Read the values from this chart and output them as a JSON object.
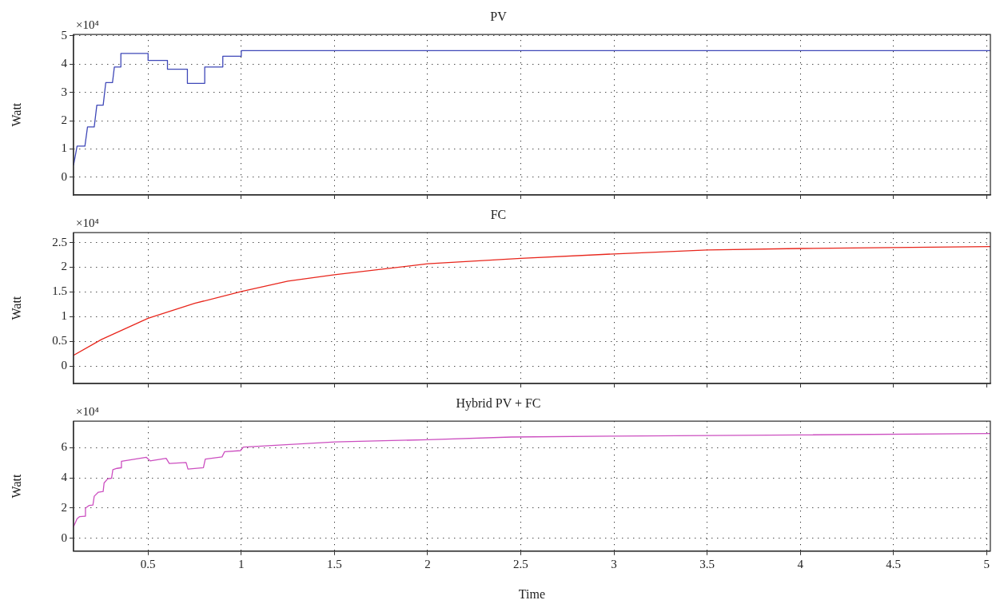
{
  "chart_data": [
    {
      "type": "line",
      "title": "PV",
      "ylabel": "Watt",
      "annotations": [
        "×10⁴"
      ],
      "xlim": [
        0.1,
        5.02
      ],
      "xticks": [
        0.5,
        1,
        1.5,
        2,
        2.5,
        3,
        3.5,
        4,
        4.5,
        5
      ],
      "ylim": [
        -0.63,
        5.05
      ],
      "yticks": [
        0,
        1,
        2,
        3,
        4,
        5
      ],
      "grid": true,
      "tick_labels": "y",
      "line_style": "solid",
      "series": [
        {
          "color": "#3f48b8",
          "x": [
            0.1,
            0.119,
            0.161,
            0.175,
            0.211,
            0.225,
            0.259,
            0.273,
            0.309,
            0.319,
            0.354,
            0.354,
            0.5,
            0.5,
            0.604,
            0.604,
            0.711,
            0.711,
            0.804,
            0.804,
            0.901,
            0.901,
            1.0,
            1.0,
            5.02
          ],
          "values": [
            0.42,
            1.1,
            1.1,
            1.78,
            1.78,
            2.55,
            2.55,
            3.35,
            3.35,
            3.9,
            3.9,
            4.38,
            4.38,
            4.13,
            4.13,
            3.82,
            3.82,
            3.32,
            3.32,
            3.9,
            3.9,
            4.28,
            4.28,
            4.48,
            4.48
          ]
        }
      ]
    },
    {
      "type": "line",
      "title": "FC",
      "ylabel": "Watt",
      "annotations": [
        "×10⁴"
      ],
      "xlim": [
        0.1,
        5.02
      ],
      "xticks": [
        0.5,
        1,
        1.5,
        2,
        2.5,
        3,
        3.5,
        4,
        4.5,
        5
      ],
      "ylim": [
        -0.35,
        2.7
      ],
      "yticks": [
        0,
        0.5,
        1,
        1.5,
        2,
        2.5
      ],
      "grid": true,
      "tick_labels": "y",
      "line_style": "solid",
      "series": [
        {
          "color": "#e8261c",
          "x": [
            0.1,
            0.25,
            0.5,
            0.75,
            1.0,
            1.25,
            1.5,
            2.0,
            2.5,
            3.0,
            3.5,
            4.0,
            5.02
          ],
          "values": [
            0.22,
            0.54,
            0.97,
            1.27,
            1.51,
            1.72,
            1.85,
            2.07,
            2.18,
            2.27,
            2.35,
            2.38,
            2.42
          ]
        }
      ]
    },
    {
      "type": "line",
      "title": "Hybrid PV + FC",
      "xlabel": "Time",
      "ylabel": "Watt",
      "annotations": [
        "×10⁴"
      ],
      "xlim": [
        0.1,
        5.02
      ],
      "xticks": [
        0.5,
        1,
        1.5,
        2,
        2.5,
        3,
        3.5,
        4,
        4.5,
        5
      ],
      "ylim": [
        -0.86,
        7.76
      ],
      "yticks": [
        0,
        2,
        4,
        6
      ],
      "grid": true,
      "line_style": "solid",
      "series": [
        {
          "color": "#cc4fc0",
          "x": [
            0.1,
            0.119,
            0.133,
            0.161,
            0.164,
            0.183,
            0.204,
            0.211,
            0.233,
            0.259,
            0.264,
            0.283,
            0.304,
            0.311,
            0.333,
            0.354,
            0.357,
            0.49,
            0.511,
            0.597,
            0.614,
            0.704,
            0.714,
            0.797,
            0.807,
            0.897,
            0.911,
            0.997,
            1.011,
            1.504,
            2.0,
            2.45,
            3.0,
            4.0,
            5.02
          ],
          "values": [
            0.76,
            1.29,
            1.43,
            1.46,
            1.99,
            2.17,
            2.2,
            2.78,
            3.05,
            3.1,
            3.66,
            3.93,
            3.98,
            4.54,
            4.63,
            4.67,
            5.1,
            5.37,
            5.13,
            5.3,
            4.95,
            5.02,
            4.58,
            4.68,
            5.25,
            5.39,
            5.74,
            5.81,
            6.04,
            6.39,
            6.53,
            6.71,
            6.77,
            6.85,
            6.94
          ]
        }
      ]
    }
  ]
}
